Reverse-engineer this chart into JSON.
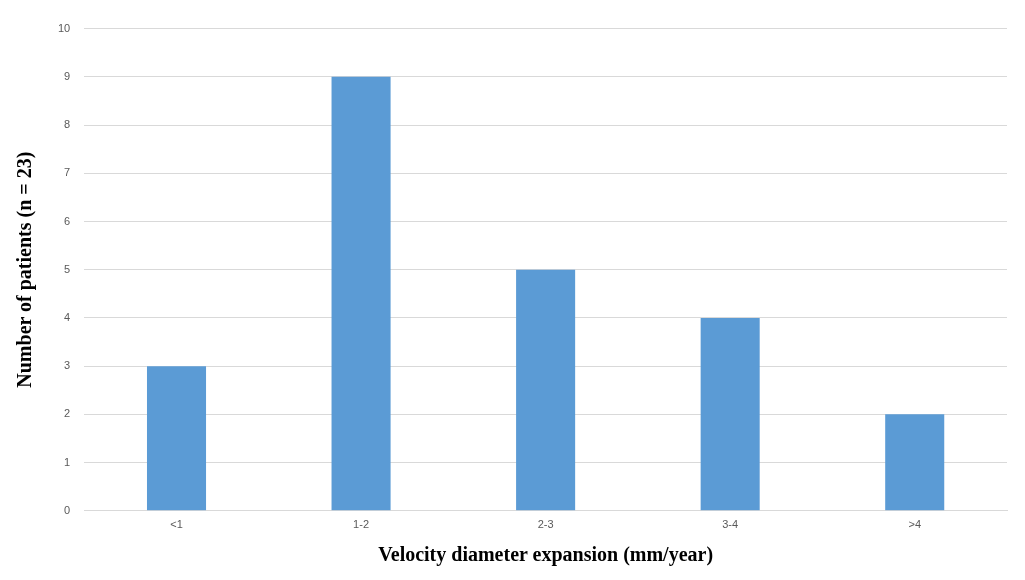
{
  "chart_data": {
    "type": "bar",
    "xlabel": "Velocity diameter expansion (mm/year)",
    "ylabel": "Number of patients (n = 23)",
    "categories": [
      "<1",
      "1-2",
      "2-3",
      "3-4",
      ">4"
    ],
    "values": [
      3,
      9,
      5,
      4,
      2
    ],
    "color": "#5b9bd5",
    "ylim": [
      0,
      10
    ],
    "yticks": [
      0,
      1,
      2,
      3,
      4,
      5,
      6,
      7,
      8,
      9,
      10
    ],
    "grid": "y",
    "legend": false
  }
}
